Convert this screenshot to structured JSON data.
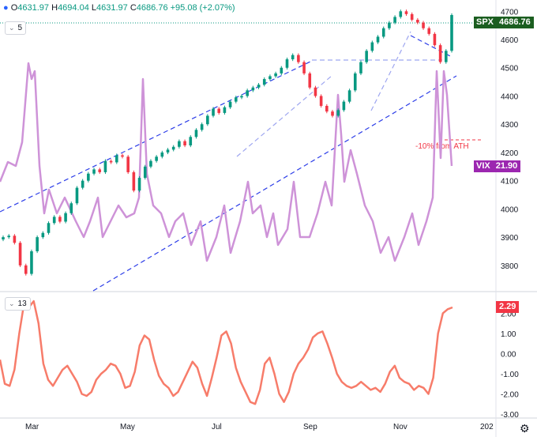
{
  "header": {
    "symbol_icon": "circle-icon",
    "o_label": "O",
    "o": "4631.97",
    "h_label": "H",
    "h": "4694.04",
    "l_label": "L",
    "l": "4631.97",
    "c_label": "C",
    "c": "4686.76",
    "chg": "+95.08 (+2.07%)"
  },
  "main_indicator": {
    "value": "5",
    "icon": "visibility-icon"
  },
  "sub_indicator": {
    "value": "13",
    "icon": "visibility-icon"
  },
  "tags": {
    "spx_symbol": "SPX",
    "spx_value": "4686.76",
    "vix_symbol": "VIX",
    "vix_value": "21.90",
    "osc_value": "2.29"
  },
  "annotation": "-10% from ATH",
  "colors": {
    "up": "#089981",
    "down": "#f23645",
    "vix": "#ce93d8",
    "osc": "#f77c6a",
    "channel": "#2d3ee8",
    "channel_light": "#9ea6f0",
    "spx_tag": "#1b5e20",
    "vix_tag": "#9c27b0"
  },
  "chart_data": [
    {
      "type": "candlestick",
      "series": [
        {
          "name": "SPX",
          "values": [
            3900,
            3905,
            3880,
            3800,
            3770,
            3850,
            3900,
            3915,
            3950,
            3972,
            3955,
            3985,
            4020,
            4075,
            4100,
            4125,
            4140,
            4130,
            4170,
            4165,
            4190,
            4185,
            4130,
            4065,
            4110,
            4150,
            4170,
            4185,
            4200,
            4210,
            4220,
            4240,
            4225,
            4255,
            4280,
            4300,
            4330,
            4355,
            4340,
            4360,
            4380,
            4395,
            4400,
            4420,
            4430,
            4440,
            4460,
            4470,
            4480,
            4500,
            4530,
            4545,
            4520,
            4480,
            4430,
            4400,
            4365,
            4345,
            4330,
            4350,
            4380,
            4420,
            4480,
            4520,
            4560,
            4590,
            4610,
            4640,
            4660,
            4680,
            4700,
            4690,
            4670,
            4660,
            4640,
            4620,
            4580,
            4520,
            4560,
            4686.76
          ]
        }
      ],
      "secondary_series": {
        "name": "VIX",
        "last": 21.9
      },
      "y_ticks": [
        3800,
        3900,
        4000,
        4100,
        4200,
        4300,
        4400,
        4500,
        4600,
        4700
      ],
      "y_range": [
        3710,
        4740
      ],
      "annotation": "-10% from ATH"
    },
    {
      "type": "line",
      "series": [
        {
          "name": "13",
          "values": [
            -0.3,
            -1.5,
            -1.6,
            -0.8,
            1.0,
            2.5,
            2.3,
            2.6,
            1.5,
            -0.5,
            -1.3,
            -1.6,
            -1.2,
            -0.8,
            -0.6,
            -1.0,
            -1.4,
            -2.0,
            -2.1,
            -1.9,
            -1.3,
            -1.0,
            -0.8,
            -0.5,
            -0.6,
            -1.0,
            -1.7,
            -1.6,
            -0.9,
            0.4,
            0.9,
            0.7,
            -0.3,
            -1.1,
            -1.5,
            -1.7,
            -2.1,
            -1.9,
            -1.4,
            -0.9,
            -0.4,
            -0.7,
            -1.5,
            -2.1,
            -1.2,
            -0.2,
            0.9,
            1.1,
            0.5,
            -0.7,
            -1.4,
            -1.9,
            -2.4,
            -2.5,
            -1.8,
            -0.5,
            -0.2,
            -1.0,
            -2.0,
            -2.4,
            -1.9,
            -1.0,
            -0.5,
            -0.2,
            0.2,
            0.8,
            1.0,
            1.1,
            0.5,
            -0.2,
            -1.0,
            -1.4,
            -1.6,
            -1.7,
            -1.6,
            -1.4,
            -1.6,
            -1.8,
            -1.7,
            -1.9,
            -1.5,
            -0.9,
            -0.6,
            -1.2,
            -1.4,
            -1.5,
            -1.8,
            -1.6,
            -1.7,
            -2.0,
            -1.2,
            1.0,
            2.0,
            2.2,
            2.29
          ]
        }
      ],
      "y_ticks": [
        -3.0,
        -2.0,
        -1.0,
        0.0,
        1.0,
        2.0
      ],
      "y_tick_labels": [
        "-3.00",
        "-2.00",
        "-1.00",
        "0.00",
        "1.00",
        "2.00"
      ],
      "y_range": [
        -3.0,
        2.8
      ]
    }
  ],
  "x_axis_labels": [
    "Mar",
    "May",
    "Jul",
    "Sep",
    "Nov",
    "202"
  ]
}
